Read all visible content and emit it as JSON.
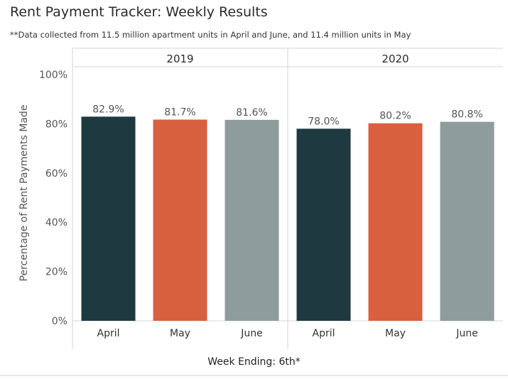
{
  "title": "Rent Payment Tracker: Weekly Results",
  "subtitle": "**Data collected from 11.5 million apartment units in April and June, and 11.4 million units in May",
  "footer": "Week Ending: 6th*",
  "chart_data": {
    "type": "bar",
    "ylabel": "Percentage of Rent Payments Made",
    "xlabel": "Week Ending: 6th*",
    "ylim": [
      0,
      100
    ],
    "yticks": [
      "0%",
      "20%",
      "40%",
      "60%",
      "80%",
      "100%"
    ],
    "grid": false,
    "panels": [
      {
        "label": "2019",
        "categories": [
          "April",
          "May",
          "June"
        ],
        "values": [
          82.9,
          81.7,
          81.6
        ],
        "value_labels": [
          "82.9%",
          "81.7%",
          "81.6%"
        ]
      },
      {
        "label": "2020",
        "categories": [
          "April",
          "May",
          "June"
        ],
        "values": [
          78.0,
          80.2,
          80.8
        ],
        "value_labels": [
          "78.0%",
          "80.2%",
          "80.8%"
        ]
      }
    ],
    "colors": {
      "April": "#1e3a40",
      "May": "#d9603f",
      "June": "#8e9d9c"
    }
  }
}
